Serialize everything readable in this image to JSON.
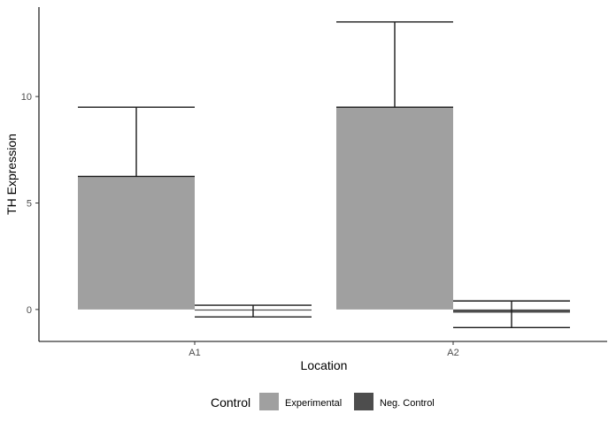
{
  "chart_data": {
    "type": "bar",
    "categories": [
      "A1",
      "A2"
    ],
    "series": [
      {
        "name": "Experimental",
        "color": "#a0a0a0",
        "values": [
          6.25,
          9.5
        ],
        "error_upper": [
          9.5,
          13.5
        ],
        "error_lower": [
          6.25,
          9.5
        ]
      },
      {
        "name": "Neg. Control",
        "color": "#4d4d4d",
        "values": [
          -0.05,
          -0.15
        ],
        "error_upper": [
          0.2,
          0.4
        ],
        "error_lower": [
          -0.35,
          -0.85
        ]
      }
    ],
    "xlabel": "Location",
    "ylabel": "TH Expression",
    "yticks": [
      0,
      5,
      10
    ],
    "ylim": [
      -1.5,
      14.2
    ],
    "grid": false,
    "legend": {
      "title": "Control",
      "position": "bottom",
      "entries": [
        "Experimental",
        "Neg. Control"
      ]
    }
  }
}
